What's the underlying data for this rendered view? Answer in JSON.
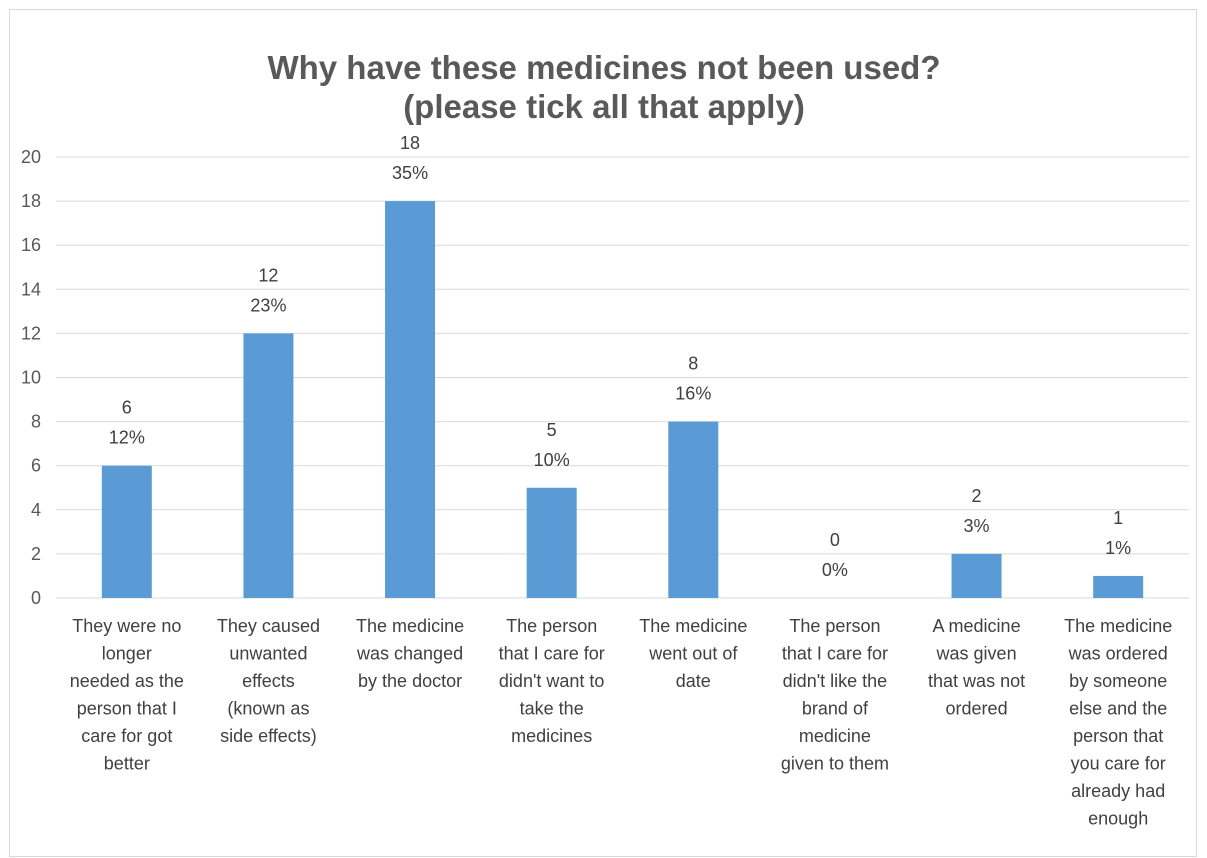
{
  "chart_data": {
    "type": "bar",
    "title": [
      "Why have these medicines not been used?",
      "(please tick all that apply)"
    ],
    "xlabel": "",
    "ylabel": "",
    "ylim": [
      0,
      20
    ],
    "yticks": [
      0,
      2,
      4,
      6,
      8,
      10,
      12,
      14,
      16,
      18,
      20
    ],
    "grid": true,
    "legend": "none",
    "bar_color": "#5b9bd5",
    "categories": [
      [
        "They were no",
        "longer",
        "needed as the",
        "person that I",
        "care for got",
        "better"
      ],
      [
        "They caused",
        "unwanted",
        "effects",
        "(known as",
        "side effects)"
      ],
      [
        "The medicine",
        "was changed",
        "by the doctor"
      ],
      [
        "The person",
        "that I care for",
        "didn't want to",
        "take the",
        "medicines"
      ],
      [
        "The medicine",
        "went out of",
        "date"
      ],
      [
        "The person",
        "that I care for",
        "didn't like the",
        "brand of",
        "medicine",
        "given to them"
      ],
      [
        "A medicine",
        "was given",
        "that was not",
        "ordered"
      ],
      [
        "The medicine",
        "was ordered",
        "by someone",
        "else and the",
        "person that",
        "you care for",
        "already had",
        "enough"
      ]
    ],
    "values": [
      6,
      12,
      18,
      5,
      8,
      0,
      2,
      1
    ],
    "percent_labels": [
      "12%",
      "23%",
      "35%",
      "10%",
      "16%",
      "0%",
      "3%",
      "1%"
    ]
  }
}
